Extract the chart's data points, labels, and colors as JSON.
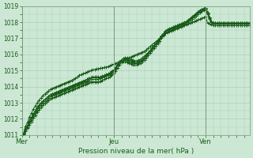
{
  "bg_color": "#cce8d4",
  "grid_color": "#aacfb8",
  "line_color": "#1a5c1a",
  "xlabel": "Pression niveau de la mer( hPa )",
  "ylim": [
    1011,
    1019
  ],
  "yticks": [
    1011,
    1012,
    1013,
    1014,
    1015,
    1016,
    1017,
    1018,
    1019
  ],
  "xtick_labels": [
    "Mer",
    "Jeu",
    "Ven"
  ],
  "xtick_pos": [
    0,
    48,
    96
  ],
  "total_points": 120,
  "series": [
    [
      1011.0,
      1011.15,
      1011.55,
      1011.8,
      1012.1,
      1012.35,
      1012.6,
      1012.8,
      1013.0,
      1013.15,
      1013.3,
      1013.45,
      1013.55,
      1013.65,
      1013.75,
      1013.85,
      1013.9,
      1013.95,
      1014.0,
      1014.05,
      1014.1,
      1014.15,
      1014.2,
      1014.25,
      1014.3,
      1014.35,
      1014.4,
      1014.45,
      1014.5,
      1014.6,
      1014.7,
      1014.75,
      1014.8,
      1014.85,
      1014.9,
      1014.95,
      1015.0,
      1015.05,
      1015.05,
      1015.1,
      1015.1,
      1015.15,
      1015.15,
      1015.2,
      1015.2,
      1015.25,
      1015.3,
      1015.35,
      1015.4,
      1015.45,
      1015.5,
      1015.55,
      1015.6,
      1015.65,
      1015.7,
      1015.75,
      1015.8,
      1015.85,
      1015.9,
      1015.95,
      1016.0,
      1016.05,
      1016.1,
      1016.15,
      1016.2,
      1016.3,
      1016.4,
      1016.5,
      1016.6,
      1016.7,
      1016.8,
      1016.9,
      1017.0,
      1017.1,
      1017.2,
      1017.3,
      1017.35,
      1017.4,
      1017.45,
      1017.5,
      1017.55,
      1017.6,
      1017.65,
      1017.7,
      1017.75,
      1017.8,
      1017.85,
      1017.9,
      1017.95,
      1018.0,
      1018.05,
      1018.1,
      1018.15,
      1018.2,
      1018.25,
      1018.3,
      1018.35,
      1017.95,
      1017.9,
      1017.85,
      1017.8,
      1017.8,
      1017.8,
      1017.8,
      1017.8,
      1017.8,
      1017.8,
      1017.8,
      1017.8,
      1017.8,
      1017.8,
      1017.8,
      1017.8,
      1017.8,
      1017.8,
      1017.8,
      1017.8,
      1017.8,
      1017.8,
      1017.8
    ],
    [
      1011.0,
      1011.1,
      1011.4,
      1011.6,
      1011.9,
      1012.1,
      1012.3,
      1012.5,
      1012.7,
      1012.85,
      1013.0,
      1013.1,
      1013.2,
      1013.3,
      1013.4,
      1013.5,
      1013.55,
      1013.6,
      1013.65,
      1013.7,
      1013.75,
      1013.8,
      1013.85,
      1013.9,
      1013.95,
      1014.0,
      1014.05,
      1014.1,
      1014.15,
      1014.2,
      1014.25,
      1014.3,
      1014.35,
      1014.4,
      1014.45,
      1014.5,
      1014.55,
      1014.6,
      1014.6,
      1014.6,
      1014.6,
      1014.6,
      1014.65,
      1014.7,
      1014.75,
      1014.8,
      1014.85,
      1014.95,
      1015.05,
      1015.2,
      1015.4,
      1015.55,
      1015.65,
      1015.75,
      1015.8,
      1015.8,
      1015.75,
      1015.7,
      1015.65,
      1015.6,
      1015.6,
      1015.65,
      1015.7,
      1015.8,
      1015.9,
      1016.0,
      1016.1,
      1016.2,
      1016.35,
      1016.5,
      1016.65,
      1016.8,
      1016.95,
      1017.1,
      1017.25,
      1017.4,
      1017.5,
      1017.55,
      1017.6,
      1017.65,
      1017.7,
      1017.75,
      1017.8,
      1017.85,
      1017.9,
      1017.95,
      1018.0,
      1018.1,
      1018.2,
      1018.3,
      1018.4,
      1018.5,
      1018.6,
      1018.65,
      1018.7,
      1018.75,
      1018.8,
      1018.5,
      1018.2,
      1018.0,
      1017.9,
      1017.9,
      1017.9,
      1017.9,
      1017.9,
      1017.9,
      1017.9,
      1017.9,
      1017.9,
      1017.9,
      1017.9,
      1017.9,
      1017.9,
      1017.9,
      1017.9,
      1017.9,
      1017.9,
      1017.9,
      1017.9,
      1017.9
    ],
    [
      1011.0,
      1011.1,
      1011.4,
      1011.6,
      1011.85,
      1012.05,
      1012.25,
      1012.45,
      1012.65,
      1012.8,
      1012.95,
      1013.1,
      1013.2,
      1013.3,
      1013.4,
      1013.5,
      1013.55,
      1013.6,
      1013.65,
      1013.7,
      1013.75,
      1013.8,
      1013.85,
      1013.9,
      1013.95,
      1014.0,
      1014.05,
      1014.1,
      1014.15,
      1014.2,
      1014.25,
      1014.3,
      1014.35,
      1014.4,
      1014.45,
      1014.5,
      1014.55,
      1014.55,
      1014.55,
      1014.55,
      1014.55,
      1014.55,
      1014.6,
      1014.65,
      1014.7,
      1014.75,
      1014.8,
      1014.9,
      1015.0,
      1015.15,
      1015.35,
      1015.55,
      1015.65,
      1015.75,
      1015.75,
      1015.7,
      1015.65,
      1015.6,
      1015.55,
      1015.5,
      1015.5,
      1015.55,
      1015.6,
      1015.7,
      1015.8,
      1015.95,
      1016.1,
      1016.25,
      1016.4,
      1016.55,
      1016.7,
      1016.85,
      1017.0,
      1017.15,
      1017.3,
      1017.45,
      1017.55,
      1017.6,
      1017.65,
      1017.7,
      1017.75,
      1017.8,
      1017.85,
      1017.9,
      1017.95,
      1018.0,
      1018.05,
      1018.15,
      1018.25,
      1018.35,
      1018.45,
      1018.55,
      1018.65,
      1018.75,
      1018.8,
      1018.85,
      1018.9,
      1018.6,
      1018.3,
      1018.05,
      1017.95,
      1017.95,
      1017.95,
      1017.95,
      1017.95,
      1017.95,
      1017.95,
      1017.95,
      1017.95,
      1017.95,
      1017.95,
      1017.95,
      1017.95,
      1017.95,
      1017.95,
      1017.95,
      1017.95,
      1017.95,
      1017.95,
      1017.95
    ],
    [
      1011.0,
      1011.05,
      1011.3,
      1011.5,
      1011.75,
      1011.95,
      1012.15,
      1012.35,
      1012.55,
      1012.7,
      1012.85,
      1013.0,
      1013.1,
      1013.2,
      1013.3,
      1013.4,
      1013.45,
      1013.5,
      1013.55,
      1013.6,
      1013.65,
      1013.7,
      1013.75,
      1013.8,
      1013.85,
      1013.9,
      1013.95,
      1014.0,
      1014.05,
      1014.1,
      1014.15,
      1014.2,
      1014.25,
      1014.3,
      1014.35,
      1014.4,
      1014.45,
      1014.45,
      1014.45,
      1014.45,
      1014.45,
      1014.5,
      1014.55,
      1014.6,
      1014.65,
      1014.7,
      1014.75,
      1014.85,
      1014.95,
      1015.1,
      1015.3,
      1015.5,
      1015.6,
      1015.65,
      1015.65,
      1015.6,
      1015.55,
      1015.5,
      1015.45,
      1015.45,
      1015.45,
      1015.5,
      1015.55,
      1015.65,
      1015.75,
      1015.9,
      1016.05,
      1016.2,
      1016.35,
      1016.5,
      1016.65,
      1016.8,
      1016.95,
      1017.1,
      1017.25,
      1017.4,
      1017.5,
      1017.55,
      1017.6,
      1017.65,
      1017.7,
      1017.75,
      1017.8,
      1017.85,
      1017.9,
      1017.95,
      1018.0,
      1018.1,
      1018.2,
      1018.3,
      1018.4,
      1018.5,
      1018.6,
      1018.7,
      1018.78,
      1018.85,
      1018.9,
      1018.6,
      1018.3,
      1018.05,
      1017.95,
      1017.95,
      1017.95,
      1017.95,
      1017.95,
      1017.95,
      1017.95,
      1017.95,
      1017.95,
      1017.95,
      1017.95,
      1017.95,
      1017.95,
      1017.95,
      1017.95,
      1017.95,
      1017.95,
      1017.95,
      1017.95,
      1017.95
    ],
    [
      1011.0,
      1011.05,
      1011.25,
      1011.45,
      1011.65,
      1011.85,
      1012.05,
      1012.2,
      1012.4,
      1012.55,
      1012.7,
      1012.85,
      1012.95,
      1013.05,
      1013.15,
      1013.25,
      1013.3,
      1013.35,
      1013.4,
      1013.45,
      1013.5,
      1013.55,
      1013.6,
      1013.65,
      1013.7,
      1013.75,
      1013.8,
      1013.85,
      1013.9,
      1013.95,
      1014.0,
      1014.05,
      1014.1,
      1014.15,
      1014.2,
      1014.25,
      1014.3,
      1014.3,
      1014.3,
      1014.3,
      1014.3,
      1014.35,
      1014.4,
      1014.45,
      1014.5,
      1014.55,
      1014.6,
      1014.7,
      1014.8,
      1014.95,
      1015.15,
      1015.35,
      1015.5,
      1015.55,
      1015.55,
      1015.5,
      1015.45,
      1015.4,
      1015.35,
      1015.35,
      1015.35,
      1015.4,
      1015.45,
      1015.55,
      1015.65,
      1015.8,
      1015.95,
      1016.1,
      1016.25,
      1016.4,
      1016.55,
      1016.7,
      1016.85,
      1017.0,
      1017.15,
      1017.3,
      1017.4,
      1017.45,
      1017.5,
      1017.55,
      1017.6,
      1017.65,
      1017.7,
      1017.75,
      1017.8,
      1017.85,
      1017.9,
      1018.0,
      1018.1,
      1018.2,
      1018.3,
      1018.4,
      1018.5,
      1018.6,
      1018.7,
      1018.78,
      1018.85,
      1018.55,
      1018.25,
      1018.0,
      1017.9,
      1017.9,
      1017.9,
      1017.9,
      1017.9,
      1017.9,
      1017.9,
      1017.9,
      1017.9,
      1017.9,
      1017.9,
      1017.9,
      1017.9,
      1017.9,
      1017.9,
      1017.9,
      1017.9,
      1017.9,
      1017.9,
      1017.9
    ]
  ]
}
